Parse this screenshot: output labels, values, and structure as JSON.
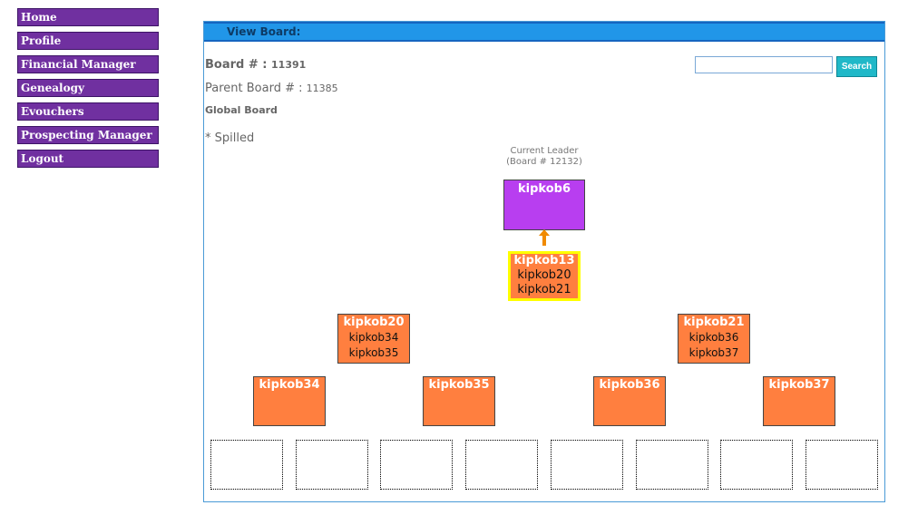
{
  "nav": {
    "items": [
      "Home",
      "Profile",
      "Financial Manager",
      "Genealogy",
      "Evouchers",
      "Prospecting Manager",
      "Logout"
    ]
  },
  "panel": {
    "title": "View Board:",
    "board_label": "Board # :",
    "board_value": "11391",
    "parent_label": "Parent Board # :",
    "parent_value": "11385",
    "global_label": "Global Board",
    "spilled_label": "* Spilled"
  },
  "search": {
    "value": "",
    "button_label": "Search"
  },
  "tree": {
    "leader_caption_line1": "Current Leader",
    "leader_caption_line2": "(Board # 12132)",
    "leader": {
      "name": "kipkob6"
    },
    "current": {
      "name": "kipkob13",
      "children": [
        "kipkob20",
        "kipkob21"
      ]
    },
    "level2": [
      {
        "name": "kipkob20",
        "children": [
          "kipkob34",
          "kipkob35"
        ]
      },
      {
        "name": "kipkob21",
        "children": [
          "kipkob36",
          "kipkob37"
        ]
      }
    ],
    "level3": [
      {
        "name": "kipkob34"
      },
      {
        "name": "kipkob35"
      },
      {
        "name": "kipkob36"
      },
      {
        "name": "kipkob37"
      }
    ],
    "empty_slots": 8
  },
  "colors": {
    "nav_bg": "#7030a0",
    "header_bg": "#2196e8",
    "leader_node": "#b83ef0",
    "member_node": "#ff7f3f",
    "current_highlight": "#ffff00",
    "arrow": "#f08a00",
    "search_button": "#20b8c8"
  }
}
